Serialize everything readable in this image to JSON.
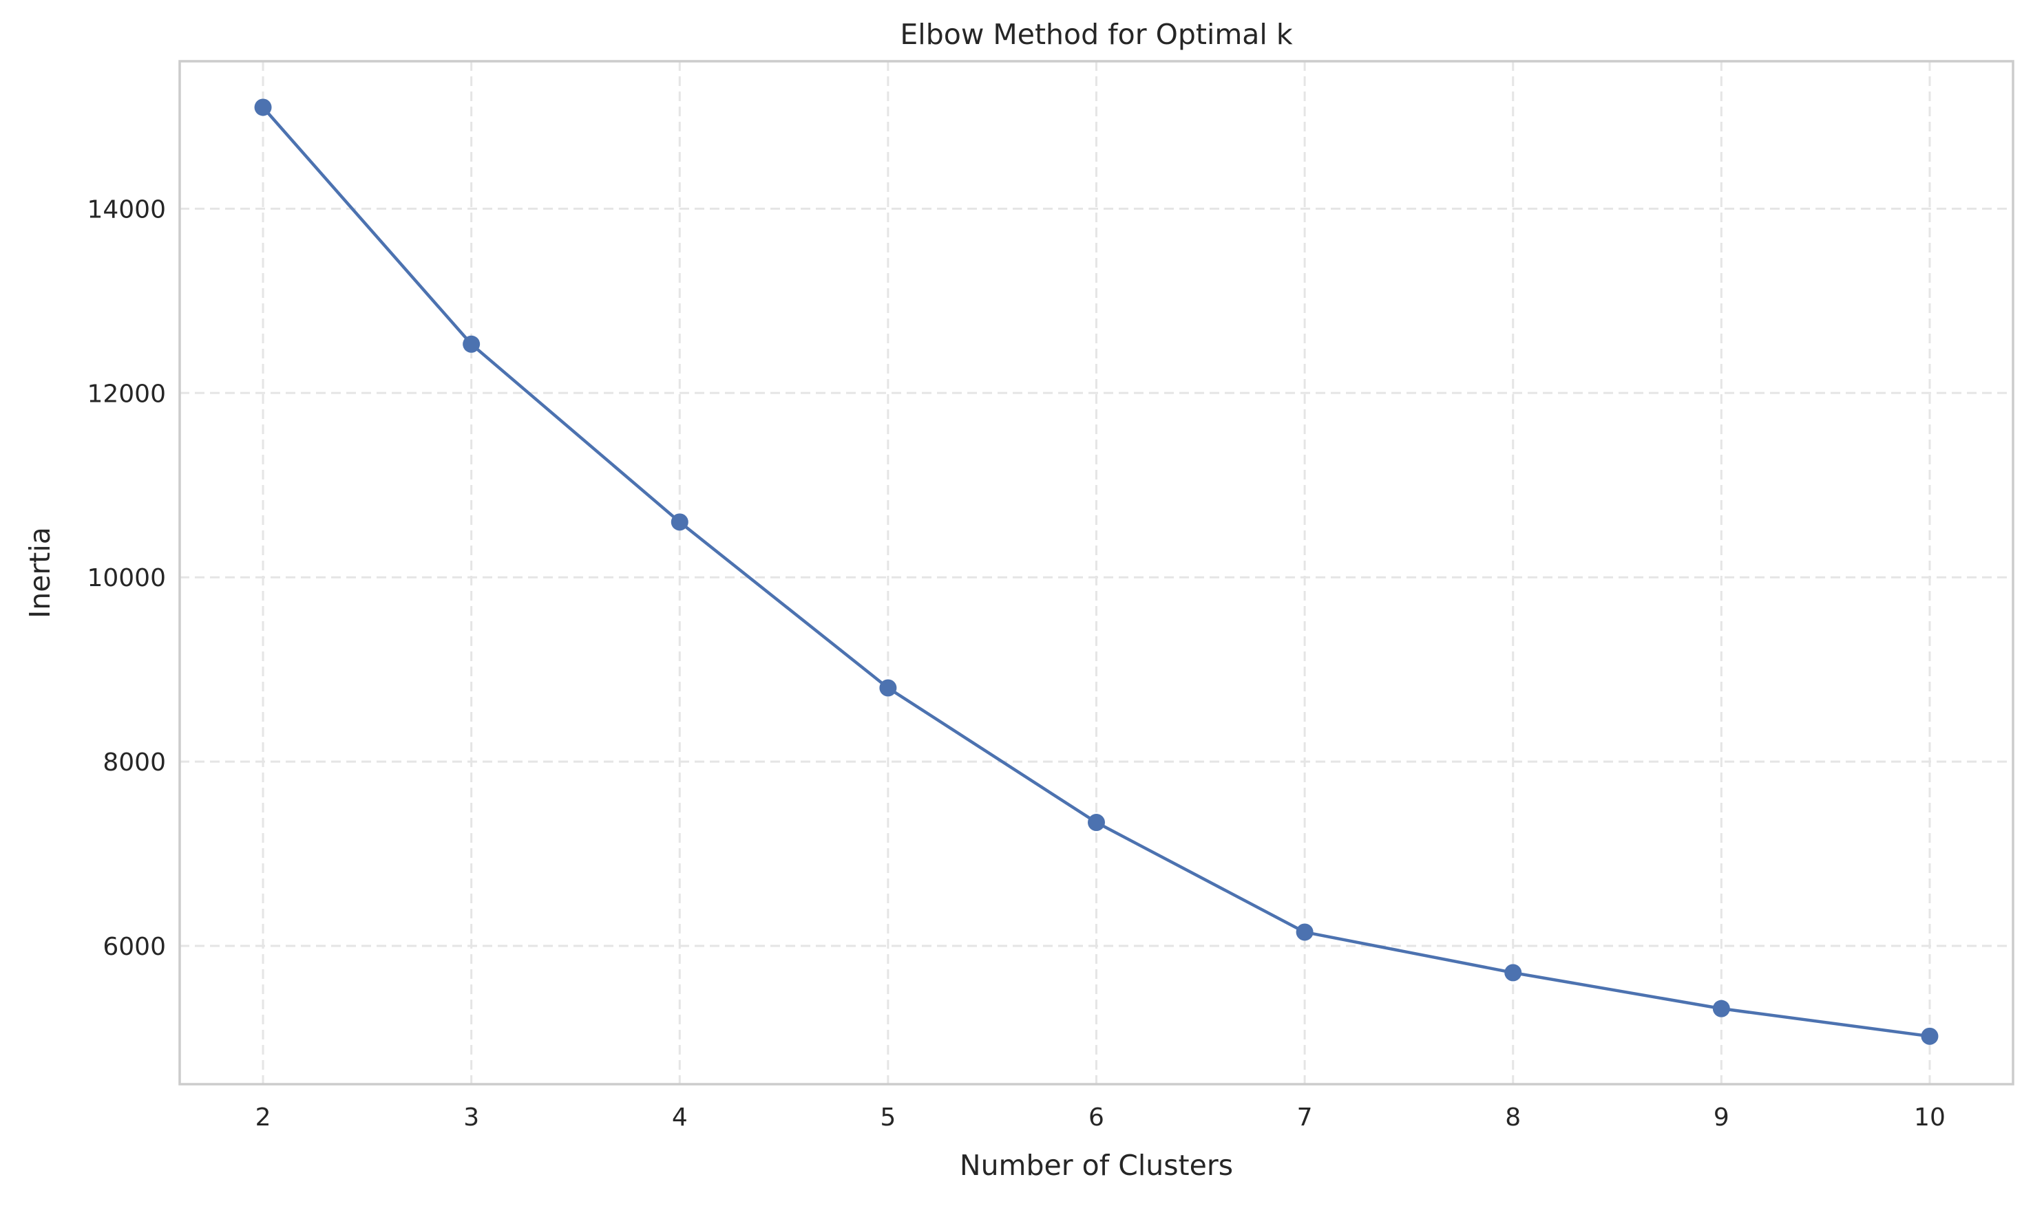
{
  "chart_data": {
    "type": "line",
    "title": "Elbow Method for Optimal k",
    "xlabel": "Number of Clusters",
    "ylabel": "Inertia",
    "x": [
      2,
      3,
      4,
      5,
      6,
      7,
      8,
      9,
      10
    ],
    "series": [
      {
        "name": "",
        "values": [
          15100,
          12530,
          10600,
          8800,
          7340,
          6150,
          5710,
          5320,
          5020
        ]
      }
    ],
    "x_ticks": [
      2,
      3,
      4,
      5,
      6,
      7,
      8,
      9,
      10
    ],
    "y_ticks": [
      6000,
      8000,
      10000,
      12000,
      14000
    ],
    "xlim": [
      1.6,
      10.4
    ],
    "ylim": [
      4500,
      15600
    ],
    "grid": true,
    "grid_style": "dashed",
    "marker": "circle",
    "colors": {
      "line": "#4c72b0",
      "grid": "#e5e5e5",
      "frame": "#cccccc",
      "text": "#262626"
    }
  }
}
